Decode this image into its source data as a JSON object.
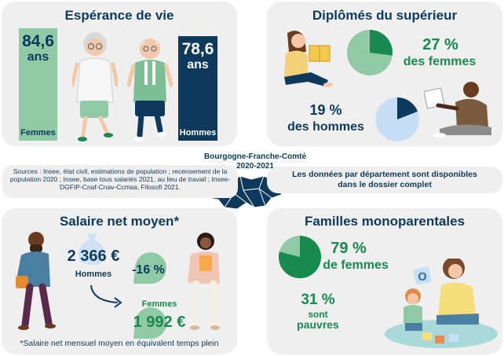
{
  "life": {
    "title": "Espérance de vie",
    "women_value": "84,6",
    "women_unit": "ans",
    "women_label": "Femmes",
    "men_value": "78,6",
    "men_unit": "ans",
    "men_label": "Hommes"
  },
  "graduates": {
    "title": "Diplômés du supérieur",
    "women_value": "27 %",
    "women_label": "des femmes",
    "men_value": "19 %",
    "men_label": "des hommes",
    "women_share": 27,
    "men_share": 19
  },
  "region": {
    "name": "Bourgogne-Franche-Comté",
    "years": "2020-2021"
  },
  "sources": "Sources : Insee, état civil, estimations de population ; recensement de la population 2020 ; Insee, base tous salariés 2021, au lieu de travail ; Insee-DGFIP-Cnaf-Cnav-Ccmsa, Filosofi 2021.",
  "data_note": {
    "line1": "Les données par département sont disponibles",
    "line2": "dans le dossier complet"
  },
  "salary": {
    "title": "Salaire net moyen*",
    "men_value": "2 366 €",
    "men_label": "Hommes",
    "gap": "-16 %",
    "women_label": "Femmes",
    "women_value": "1 992 €",
    "footnote": "*Salaire net mensuel moyen en équivalent temps plein"
  },
  "families": {
    "title": "Familles monoparentales",
    "women_value": "79 %",
    "women_label": "de femmes",
    "poor_value": "31 %",
    "poor_label1": "sont",
    "poor_label2": "pauvres",
    "women_share": 79
  },
  "colors": {
    "navy": "#0d3a5c",
    "green": "#188a4d",
    "light_green": "#8fc9a6",
    "light_blue": "#c6dff5",
    "panel": "#efefef"
  }
}
